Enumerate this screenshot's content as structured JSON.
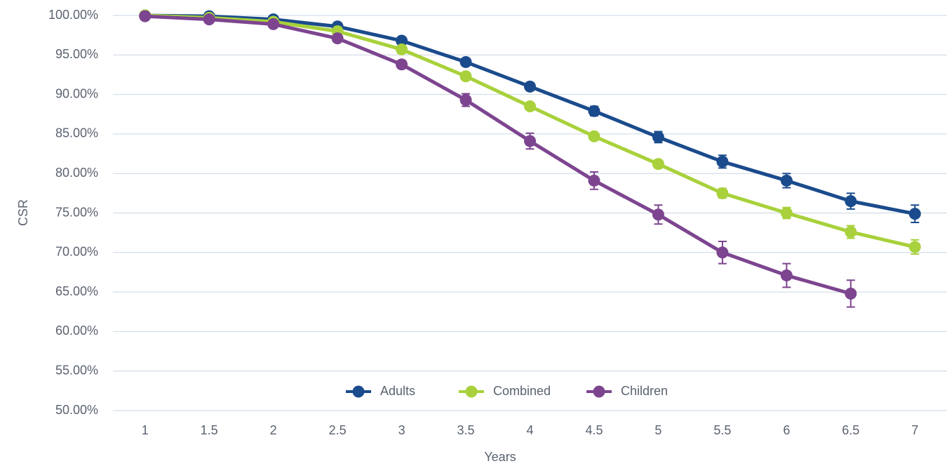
{
  "chart_data": {
    "type": "line",
    "x_label": "Years",
    "y_label": "CSR",
    "categories": [
      "1",
      "1.5",
      "2",
      "2.5",
      "3",
      "3.5",
      "4",
      "4.5",
      "5",
      "5.5",
      "6",
      "6.5",
      "7"
    ],
    "series": [
      {
        "name": "Adults",
        "color": "#1a4b8c",
        "values": [
          100,
          99.9,
          99.5,
          98.6,
          96.8,
          94.1,
          91.0,
          87.9,
          84.6,
          81.5,
          79.1,
          76.5,
          74.9
        ],
        "errors": [
          0.2,
          0.2,
          0.2,
          0.2,
          0.2,
          0.3,
          0.5,
          0.6,
          0.7,
          0.8,
          0.9,
          1.0,
          1.1
        ]
      },
      {
        "name": "Combined",
        "color": "#a8d13b",
        "values": [
          100,
          99.7,
          99.2,
          98.0,
          95.7,
          92.3,
          88.5,
          84.7,
          81.2,
          77.5,
          75.0,
          72.6,
          70.7
        ],
        "errors": [
          0.2,
          0.2,
          0.2,
          0.2,
          0.2,
          0.2,
          0.3,
          0.4,
          0.5,
          0.6,
          0.7,
          0.8,
          0.9
        ]
      },
      {
        "name": "Children",
        "color": "#7d4590",
        "values": [
          99.9,
          99.5,
          98.9,
          97.1,
          93.8,
          89.3,
          84.1,
          79.1,
          74.8,
          70.0,
          67.1,
          64.8,
          null
        ],
        "errors": [
          0.2,
          0.2,
          0.3,
          0.4,
          0.5,
          0.8,
          1.0,
          1.1,
          1.2,
          1.4,
          1.5,
          1.7,
          null
        ]
      }
    ],
    "ylim": [
      50,
      100
    ],
    "yticks": [
      {
        "value": 50,
        "label": "50.00%"
      },
      {
        "value": 55,
        "label": "55.00%"
      },
      {
        "value": 60,
        "label": "60.00%"
      },
      {
        "value": 65,
        "label": "65.00%"
      },
      {
        "value": 70,
        "label": "70.00%"
      },
      {
        "value": 75,
        "label": "75.00%"
      },
      {
        "value": 80,
        "label": "80.00%"
      },
      {
        "value": 85,
        "label": "85.00%"
      },
      {
        "value": 90,
        "label": "90.00%"
      },
      {
        "value": 95,
        "label": "95.00%"
      },
      {
        "value": 100,
        "label": "100.00%"
      }
    ],
    "grid": true,
    "legend": "bottom"
  }
}
